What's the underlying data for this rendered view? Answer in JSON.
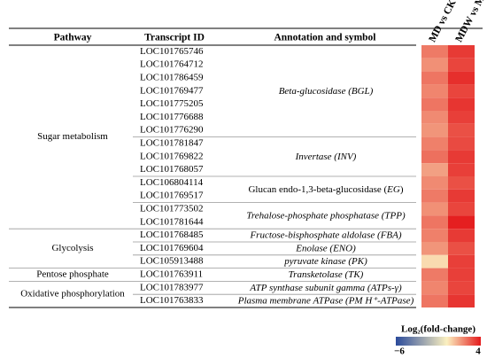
{
  "header": {
    "pathway": "Pathway",
    "transcript": "Transcript ID",
    "annotation": "Annotation and symbol",
    "comparisons": [
      "MD vs CK",
      "MDW vs MD"
    ]
  },
  "pathways": [
    {
      "name": "Sugar metabolism",
      "annotations": [
        {
          "parts": [
            {
              "text": "Beta-glucosidase (BGL)",
              "italic": true
            }
          ],
          "transcripts": [
            {
              "id": "LOC101765746",
              "values": [
                2.2,
                3.4
              ]
            },
            {
              "id": "LOC101764712",
              "values": [
                1.8,
                3.2
              ]
            },
            {
              "id": "LOC101786459",
              "values": [
                2.3,
                3.6
              ]
            },
            {
              "id": "LOC101769477",
              "values": [
                2.0,
                3.2
              ]
            },
            {
              "id": "LOC101775205",
              "values": [
                2.3,
                3.5
              ]
            },
            {
              "id": "LOC101776688",
              "values": [
                1.9,
                3.3
              ]
            },
            {
              "id": "LOC101776290",
              "values": [
                1.7,
                3.0
              ]
            }
          ]
        },
        {
          "parts": [
            {
              "text": "Invertase (INV)",
              "italic": true
            }
          ],
          "transcripts": [
            {
              "id": "LOC101781847",
              "values": [
                2.1,
                3.1
              ]
            },
            {
              "id": "LOC101769822",
              "values": [
                2.4,
                3.4
              ]
            },
            {
              "id": "LOC101768057",
              "values": [
                1.5,
                3.3
              ]
            }
          ]
        },
        {
          "parts": [
            {
              "text": "Glucan endo-1,3-beta-glucosidase (",
              "italic": false
            },
            {
              "text": "EG",
              "italic": true
            },
            {
              "text": ")",
              "italic": false
            }
          ],
          "transcripts": [
            {
              "id": "LOC106804114",
              "values": [
                1.9,
                3.0
              ]
            },
            {
              "id": "LOC101769517",
              "values": [
                2.2,
                3.4
              ]
            }
          ]
        },
        {
          "parts": [
            {
              "text": "Trehalose-phosphate phosphatase (TPP)",
              "italic": true
            }
          ],
          "transcripts": [
            {
              "id": "LOC101773502",
              "values": [
                1.8,
                3.2
              ]
            },
            {
              "id": "LOC101781644",
              "values": [
                2.3,
                3.9
              ]
            }
          ]
        }
      ]
    },
    {
      "name": "Glycolysis",
      "annotations": [
        {
          "parts": [
            {
              "text": "Fructose-bisphosphate aldolase (FBA)",
              "italic": true
            }
          ],
          "transcripts": [
            {
              "id": "LOC101768485",
              "values": [
                2.1,
                3.4
              ]
            }
          ]
        },
        {
          "parts": [
            {
              "text": "Enolase (ENO)",
              "italic": true
            }
          ],
          "transcripts": [
            {
              "id": "LOC101769604",
              "values": [
                1.7,
                3.0
              ]
            }
          ]
        },
        {
          "parts": [
            {
              "text": "pyruvate kinase (PK)",
              "italic": true
            }
          ],
          "transcripts": [
            {
              "id": "LOC105913488",
              "values": [
                0.4,
                3.3
              ]
            }
          ]
        }
      ]
    },
    {
      "name": "Pentose phosphate",
      "annotations": [
        {
          "parts": [
            {
              "text": "Transketolase (TK)",
              "italic": true
            }
          ],
          "transcripts": [
            {
              "id": "LOC101763911",
              "values": [
                2.2,
                3.3
              ]
            }
          ]
        }
      ]
    },
    {
      "name": "Oxidative phosphorylation",
      "annotations": [
        {
          "parts": [
            {
              "text": "ATP synthase subunit gamma (ATPs-γ)",
              "italic": true
            }
          ],
          "transcripts": [
            {
              "id": "LOC101783977",
              "values": [
                2.0,
                3.2
              ]
            }
          ]
        },
        {
          "parts": [
            {
              "text": "Plasma membrane ATPase (PM H⁺-ATPase)",
              "italic": true
            }
          ],
          "transcripts": [
            {
              "id": "LOC101763833",
              "values": [
                2.3,
                3.5
              ]
            }
          ]
        }
      ]
    }
  ],
  "colorbar": {
    "label": "Log₂(fold-change)",
    "min": {
      "value": -6,
      "label": "−6"
    },
    "max": 4,
    "colors": [
      "#2b4b9b",
      "#fbf0c0",
      "#e41a1c"
    ]
  }
}
